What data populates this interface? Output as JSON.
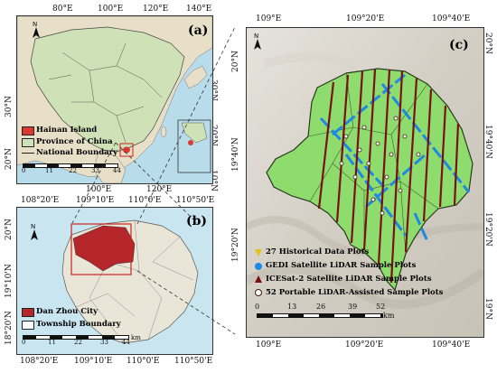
{
  "panel_a": {
    "label": "(a)",
    "top_ticks": [
      "80°E",
      "100°E",
      "120°E",
      "140°E"
    ],
    "bottom_ticks": [
      "100°E",
      "120°E"
    ],
    "left_ticks": [
      "30°N",
      "20°N"
    ],
    "right_ticks": [
      "30°N",
      "20°N",
      "10°N"
    ],
    "legend": {
      "hainan": "Hainan Island",
      "province": "Province of China",
      "boundary": "National Boundary"
    },
    "scale": [
      "0",
      "11",
      "22",
      "33",
      "44"
    ],
    "colors": {
      "hainan": "#d83a32",
      "province": "#cfe2b7",
      "sea": "#b9dcea"
    }
  },
  "panel_b": {
    "label": "(b)",
    "top_ticks": [
      "108°20'E",
      "109°10'E",
      "110°0'E",
      "110°50'E"
    ],
    "bottom_ticks": [
      "108°20'E",
      "109°10'E",
      "110°0'E",
      "110°50'E"
    ],
    "left_ticks": [
      "20°N",
      "19°10'N",
      "18°20'N"
    ],
    "legend": {
      "city": "Dan Zhou City",
      "township": "Township Boundary"
    },
    "scale": [
      "0",
      "11",
      "22",
      "33",
      "44"
    ],
    "scale_unit": "km",
    "colors": {
      "city": "#b4262a",
      "land": "#e9e6d8"
    }
  },
  "panel_c": {
    "label": "(c)",
    "top_ticks": [
      "109°E",
      "109°20'E",
      "109°40'E"
    ],
    "bottom_ticks": [
      "109°E",
      "109°20'E",
      "109°40'E"
    ],
    "left_ticks": [
      "20°N",
      "19°40'N",
      "19°20'N"
    ],
    "right_ticks": [
      "20°N",
      "19°40'N",
      "19°20'N",
      "19°N"
    ],
    "legend": [
      {
        "icon": "historical-plot-icon",
        "text": "27 Historical Data Plots"
      },
      {
        "icon": "gedi-plot-icon",
        "text": "GEDI Satellite LiDAR Sample Plots"
      },
      {
        "icon": "icesat2-plot-icon",
        "text": "ICESat-2 Satellite LiDAR Sample Plots"
      },
      {
        "icon": "portable-lidar-plot-icon",
        "text": "52 Portable LiDAR-Assisted Sample Plots"
      }
    ],
    "scale": [
      "0",
      "13",
      "26",
      "39",
      "52"
    ],
    "scale_unit": "km",
    "colors": {
      "area": "#8fdc6e",
      "gedi": "#1e88e5",
      "icesat": "#7a1010"
    }
  }
}
